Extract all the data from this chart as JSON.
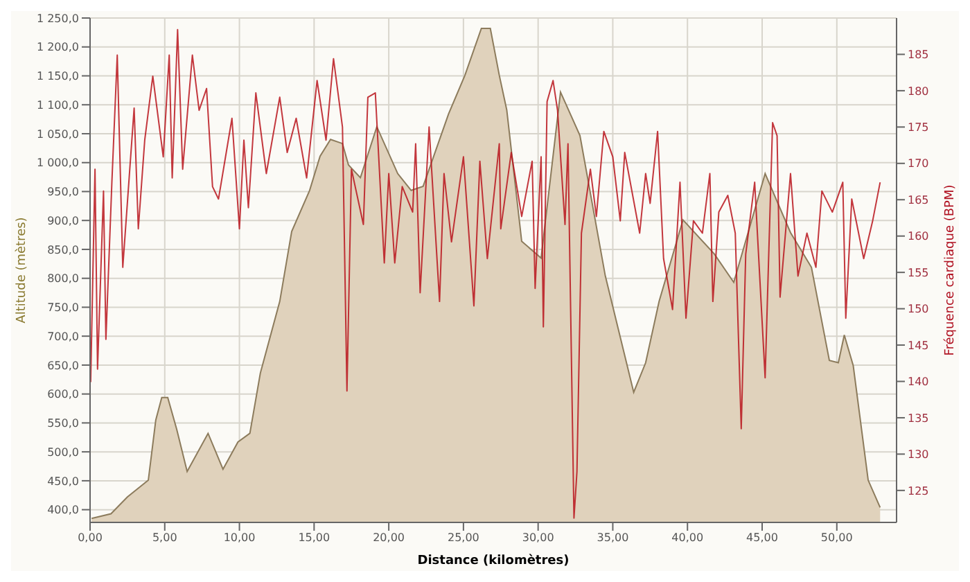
{
  "chart_data": {
    "type": "area",
    "xlabel": "Distance (kilomètres)",
    "ylabel": "Altitude (mètres)",
    "y2label": "Fréquence cardiaque (BPM)",
    "xlim": [
      0,
      54
    ],
    "xticks": [
      {
        "value": 0,
        "label": "0,00"
      },
      {
        "value": 5,
        "label": "5,00"
      },
      {
        "value": 10,
        "label": "10,00"
      },
      {
        "value": 15,
        "label": "15,00"
      },
      {
        "value": 20,
        "label": "20,00"
      },
      {
        "value": 25,
        "label": "25,00"
      },
      {
        "value": 30,
        "label": "30,00"
      },
      {
        "value": 35,
        "label": "35,00"
      },
      {
        "value": 40,
        "label": "40,00"
      },
      {
        "value": 45,
        "label": "45,00"
      },
      {
        "value": 50,
        "label": "50,00"
      }
    ],
    "ylim": [
      378,
      1250
    ],
    "yticks": [
      {
        "value": 400,
        "label": "400,0"
      },
      {
        "value": 450,
        "label": "450,0"
      },
      {
        "value": 500,
        "label": "500,0"
      },
      {
        "value": 550,
        "label": "550,0"
      },
      {
        "value": 600,
        "label": "600,0"
      },
      {
        "value": 650,
        "label": "650,0"
      },
      {
        "value": 700,
        "label": "700,0"
      },
      {
        "value": 750,
        "label": "750,0"
      },
      {
        "value": 800,
        "label": "800,0"
      },
      {
        "value": 850,
        "label": "850,0"
      },
      {
        "value": 900,
        "label": "900,0"
      },
      {
        "value": 950,
        "label": "950,0"
      },
      {
        "value": 1000,
        "label": "1 000,0"
      },
      {
        "value": 1050,
        "label": "1 050,0"
      },
      {
        "value": 1100,
        "label": "1 100,0"
      },
      {
        "value": 1150,
        "label": "1 150,0"
      },
      {
        "value": 1200,
        "label": "1 200,0"
      },
      {
        "value": 1250,
        "label": "1 250,0"
      }
    ],
    "y2lim": [
      120.6,
      190
    ],
    "y2ticks": [
      125,
      130,
      135,
      140,
      145,
      150,
      155,
      160,
      165,
      170,
      175,
      180,
      185
    ],
    "grid": true,
    "series": [
      {
        "color": "#e0d2bc",
        "x": [
          0.1,
          1.4,
          2.5,
          3.9,
          4.4,
          4.8,
          5.2,
          5.8,
          6.5,
          7.9,
          8.9,
          9.9,
          10.7,
          11.4,
          12.7,
          13.5,
          14.7,
          15.4,
          16.1,
          16.9,
          17.3,
          18.1,
          19.2,
          20.6,
          21.5,
          22.3,
          24.0,
          25.1,
          26.2,
          26.8,
          27.4,
          27.9,
          28.9,
          30.2,
          31.5,
          32.8,
          34.5,
          36.4,
          37.2,
          38.1,
          39.7,
          41.8,
          43.1,
          45.2,
          46.9,
          48.3,
          49.5,
          50.1,
          50.5,
          51.1,
          52.1,
          52.9
        ],
        "values": [
          385,
          393,
          422,
          451,
          555,
          594,
          594,
          539,
          466,
          532,
          470,
          517,
          532,
          636,
          760,
          881,
          952,
          1011,
          1040,
          1033,
          996,
          974,
          1062,
          981,
          952,
          959,
          1084,
          1151,
          1232,
          1232,
          1151,
          1091,
          864,
          835,
          1122,
          1047,
          804,
          603,
          654,
          760,
          901,
          842,
          793,
          981,
          879,
          819,
          658,
          654,
          702,
          649,
          451,
          404
        ]
      },
      {
        "type": "line",
        "axis": "y2",
        "color": "#b8141c",
        "x": [
          0.04,
          0.33,
          0.5,
          0.9,
          1.06,
          1.46,
          1.82,
          2.19,
          2.95,
          3.23,
          3.66,
          4.2,
          4.9,
          5.3,
          5.5,
          5.86,
          6.2,
          6.85,
          7.3,
          7.8,
          8.2,
          8.6,
          9.5,
          10.0,
          10.3,
          10.6,
          11.1,
          11.8,
          12.7,
          13.2,
          13.8,
          14.5,
          15.2,
          15.8,
          16.3,
          16.9,
          17.2,
          17.5,
          18.3,
          18.6,
          19.1,
          19.7,
          20.0,
          20.4,
          20.9,
          21.6,
          21.8,
          22.1,
          22.7,
          23.4,
          23.7,
          24.2,
          25.0,
          25.7,
          26.1,
          26.6,
          27.4,
          27.5,
          28.2,
          28.9,
          29.6,
          29.8,
          30.2,
          30.35,
          30.6,
          31.0,
          31.3,
          31.8,
          32.0,
          32.4,
          32.6,
          32.9,
          33.5,
          33.9,
          34.4,
          35.0,
          35.5,
          35.8,
          36.8,
          37.2,
          37.5,
          38.0,
          38.4,
          39.0,
          39.5,
          39.9,
          40.4,
          41.0,
          41.5,
          41.7,
          42.1,
          42.7,
          43.2,
          43.6,
          43.9,
          44.5,
          45.2,
          45.7,
          46.0,
          46.2,
          46.9,
          47.4,
          48.0,
          48.6,
          49.0,
          49.7,
          50.4,
          50.6,
          51.0,
          51.8,
          52.4,
          52.9
        ],
        "values": [
          139.9,
          169.2,
          141.7,
          166.2,
          145.8,
          167.4,
          184.9,
          155.7,
          177.6,
          161.0,
          173.2,
          182.0,
          170.9,
          184.9,
          168.0,
          188.4,
          169.2,
          184.9,
          177.3,
          180.3,
          166.8,
          165.1,
          176.2,
          161.0,
          173.2,
          163.9,
          179.7,
          168.6,
          179.1,
          171.5,
          176.2,
          168.0,
          181.4,
          173.2,
          184.4,
          175.0,
          138.7,
          169.2,
          161.6,
          179.1,
          179.7,
          156.3,
          168.6,
          156.3,
          166.8,
          163.3,
          172.7,
          152.2,
          175.0,
          151.0,
          168.6,
          159.2,
          170.9,
          150.4,
          170.3,
          156.9,
          172.7,
          161.0,
          171.5,
          162.7,
          170.3,
          152.8,
          170.9,
          147.5,
          178.5,
          181.4,
          177.3,
          161.6,
          172.7,
          121.2,
          127.6,
          160.4,
          169.2,
          162.7,
          174.4,
          170.9,
          162.1,
          171.5,
          160.4,
          168.6,
          164.5,
          174.4,
          156.9,
          149.9,
          167.4,
          148.7,
          162.1,
          160.4,
          168.6,
          151.0,
          163.3,
          165.6,
          160.4,
          133.5,
          157.5,
          167.4,
          140.5,
          175.6,
          173.8,
          151.6,
          168.6,
          154.5,
          160.4,
          155.7,
          166.2,
          163.3,
          167.4,
          148.7,
          165.1,
          156.9,
          162.1,
          167.4
        ]
      }
    ]
  }
}
